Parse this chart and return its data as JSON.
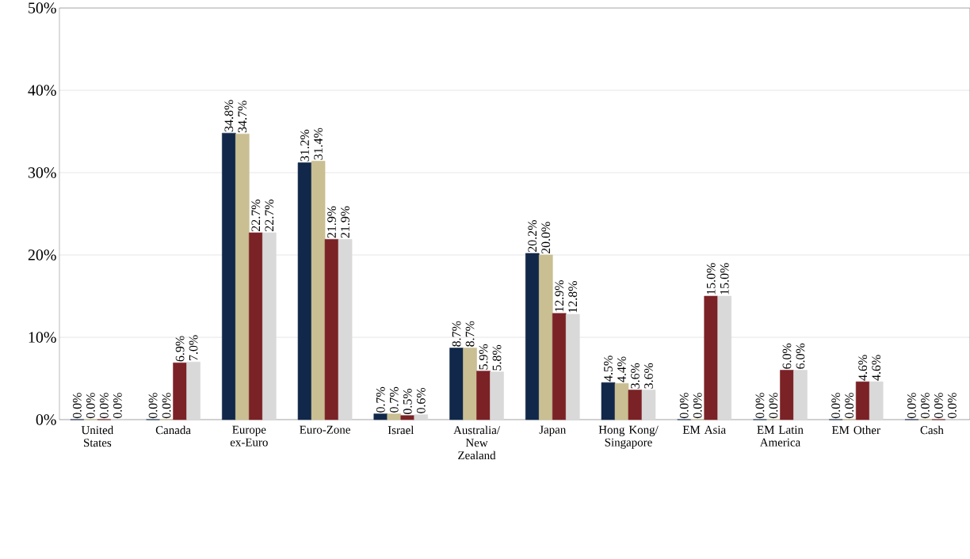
{
  "chart_data": {
    "type": "bar",
    "categories": [
      "United States",
      "Canada",
      "Europe ex-Euro",
      "Euro-Zone",
      "Israel",
      "Australia/ New Zealand",
      "Japan",
      "Hong Kong/ Singapore",
      "EM Asia",
      "EM Latin America",
      "EM Other",
      "Cash"
    ],
    "series": [
      {
        "color": "#12284a",
        "values": [
          0,
          0,
          34.8,
          31.2,
          0.7,
          8.7,
          20.2,
          4.5,
          0,
          0,
          0,
          0
        ],
        "value_labels": [
          "0.0%",
          "0.0%",
          "34.8%",
          "31.2%",
          "0.7%",
          "8.7%",
          "20.2%",
          "4.5%",
          "0.0%",
          "0.0%",
          "0.0%",
          "0.0%"
        ]
      },
      {
        "color": "#c9bf92",
        "values": [
          0,
          0,
          34.7,
          31.4,
          0.7,
          8.7,
          20.0,
          4.4,
          0,
          0,
          0,
          0
        ],
        "value_labels": [
          "0.0%",
          "0.0%",
          "34.7%",
          "31.4%",
          "0.7%",
          "8.7%",
          "20.0%",
          "4.4%",
          "0.0%",
          "0.0%",
          "0.0%",
          "0.0%"
        ]
      },
      {
        "color": "#7b2226",
        "values": [
          0,
          6.9,
          22.7,
          21.9,
          0.5,
          5.9,
          12.9,
          3.6,
          15.0,
          6.0,
          4.6,
          0
        ],
        "value_labels": [
          "0.0%",
          "6.9%",
          "22.7%",
          "21.9%",
          "0.5%",
          "5.9%",
          "12.9%",
          "3.6%",
          "15.0%",
          "6.0%",
          "4.6%",
          "0.0%"
        ]
      },
      {
        "color": "#d9d9d9",
        "values": [
          0,
          7.0,
          22.7,
          21.9,
          0.6,
          5.8,
          12.8,
          3.6,
          15.0,
          6.0,
          4.6,
          0
        ],
        "value_labels": [
          "0.0%",
          "7.0%",
          "22.7%",
          "21.9%",
          "0.6%",
          "5.8%",
          "12.8%",
          "3.6%",
          "15.0%",
          "6.0%",
          "4.6%",
          "0.0%"
        ]
      }
    ],
    "ylim": [
      0,
      50
    ],
    "yticks": [
      {
        "value": 0,
        "label": "0%"
      },
      {
        "value": 10,
        "label": "10%"
      },
      {
        "value": 20,
        "label": "20%"
      },
      {
        "value": 30,
        "label": "30%"
      },
      {
        "value": 40,
        "label": "40%"
      },
      {
        "value": 50,
        "label": "50%"
      }
    ],
    "grid": "y"
  }
}
